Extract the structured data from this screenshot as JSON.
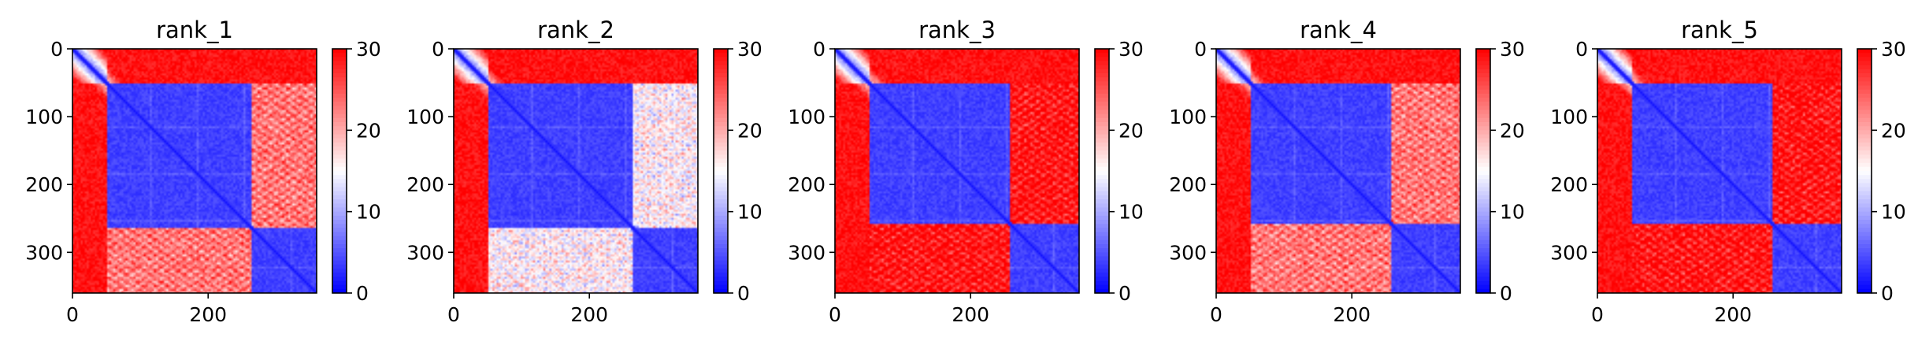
{
  "colors": {
    "low": "#0000ff",
    "mid": "#ffffff",
    "high": "#ff0000"
  },
  "chart_data": [
    {
      "type": "heatmap",
      "title": "rank_1",
      "size": 360,
      "domain_boundaries": [
        50,
        265
      ],
      "interdomain_level": "partial",
      "x_ticks": [
        0,
        200
      ],
      "y_ticks": [
        0,
        100,
        200,
        300
      ],
      "colorbar": {
        "min": 0,
        "max": 30,
        "ticks": [
          0,
          10,
          20,
          30
        ]
      }
    },
    {
      "type": "heatmap",
      "title": "rank_2",
      "size": 360,
      "domain_boundaries": [
        50,
        265
      ],
      "interdomain_level": "low",
      "x_ticks": [
        0,
        200
      ],
      "y_ticks": [
        0,
        100,
        200,
        300
      ],
      "colorbar": {
        "min": 0,
        "max": 30,
        "ticks": [
          0,
          10,
          20,
          30
        ]
      }
    },
    {
      "type": "heatmap",
      "title": "rank_3",
      "size": 360,
      "domain_boundaries": [
        50,
        258
      ],
      "interdomain_level": "high",
      "x_ticks": [
        0,
        200
      ],
      "y_ticks": [
        0,
        100,
        200,
        300
      ],
      "colorbar": {
        "min": 0,
        "max": 30,
        "ticks": [
          0,
          10,
          20,
          30
        ]
      }
    },
    {
      "type": "heatmap",
      "title": "rank_4",
      "size": 360,
      "domain_boundaries": [
        50,
        258
      ],
      "interdomain_level": "partial",
      "x_ticks": [
        0,
        200
      ],
      "y_ticks": [
        0,
        100,
        200,
        300
      ],
      "colorbar": {
        "min": 0,
        "max": 30,
        "ticks": [
          0,
          10,
          20,
          30
        ]
      }
    },
    {
      "type": "heatmap",
      "title": "rank_5",
      "size": 360,
      "domain_boundaries": [
        50,
        258
      ],
      "interdomain_level": "high",
      "x_ticks": [
        0,
        200
      ],
      "y_ticks": [
        0,
        100,
        200,
        300
      ],
      "colorbar": {
        "min": 0,
        "max": 30,
        "ticks": [
          0,
          10,
          20,
          30
        ]
      }
    }
  ]
}
